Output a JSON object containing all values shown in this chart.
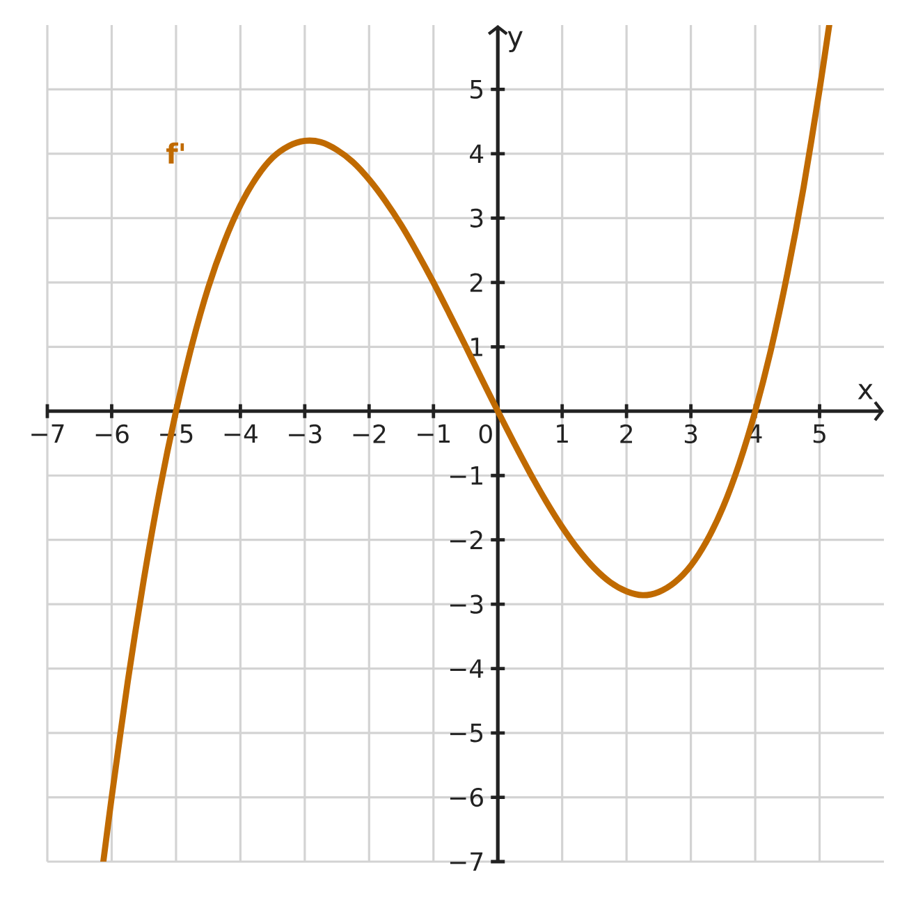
{
  "chart_data": {
    "type": "line",
    "xlabel": "x",
    "ylabel": "y",
    "xlim": [
      -7,
      6
    ],
    "ylim": [
      -7,
      6
    ],
    "xticks": [
      {
        "value": -7,
        "label": "−7"
      },
      {
        "value": -6,
        "label": "−6"
      },
      {
        "value": -5,
        "label": "−5"
      },
      {
        "value": -4,
        "label": "−4"
      },
      {
        "value": -3,
        "label": "−3"
      },
      {
        "value": -2,
        "label": "−2"
      },
      {
        "value": -1,
        "label": "−1"
      },
      0,
      1,
      2,
      3,
      4,
      5
    ],
    "yticks": [
      {
        "value": -7,
        "label": "−7"
      },
      {
        "value": -6,
        "label": "−6"
      },
      {
        "value": -5,
        "label": "−5"
      },
      {
        "value": -4,
        "label": "−4"
      },
      {
        "value": -3,
        "label": "−3"
      },
      {
        "value": -2,
        "label": "−2"
      },
      {
        "value": -1,
        "label": "−1"
      },
      1,
      2,
      3,
      4,
      5
    ],
    "grid": true,
    "series": [
      {
        "name": "f'",
        "color": "#c06a00",
        "x": [
          -6.13,
          -6,
          -5.75,
          -5.5,
          -5.25,
          -5,
          -4.75,
          -4.5,
          -4.25,
          -4,
          -3.75,
          -3.5,
          -3.25,
          -3,
          -2.75,
          -2.5,
          -2.25,
          -2,
          -1.75,
          -1.5,
          -1.25,
          -1,
          -0.75,
          -0.5,
          -0.25,
          0,
          0.25,
          0.5,
          0.75,
          1,
          1.25,
          1.5,
          1.75,
          2,
          2.25,
          2.5,
          2.75,
          3,
          3.25,
          3.5,
          3.75,
          4,
          4.25,
          4.5,
          4.75,
          5,
          5.15
        ],
        "values": [
          -7.0,
          -6.0,
          -4.2,
          -2.61,
          -1.21,
          0,
          1.04,
          1.92,
          2.63,
          3.2,
          3.63,
          3.94,
          4.12,
          4.2,
          4.18,
          4.06,
          3.87,
          3.6,
          3.27,
          2.89,
          2.46,
          2.0,
          1.51,
          1.01,
          0.5,
          0,
          -0.49,
          -0.96,
          -1.4,
          -1.8,
          -2.15,
          -2.44,
          -2.66,
          -2.8,
          -2.86,
          -2.81,
          -2.66,
          -2.4,
          -2.01,
          -1.49,
          -0.82,
          0,
          0.98,
          2.14,
          3.47,
          5.0,
          6.0
        ]
      }
    ]
  }
}
